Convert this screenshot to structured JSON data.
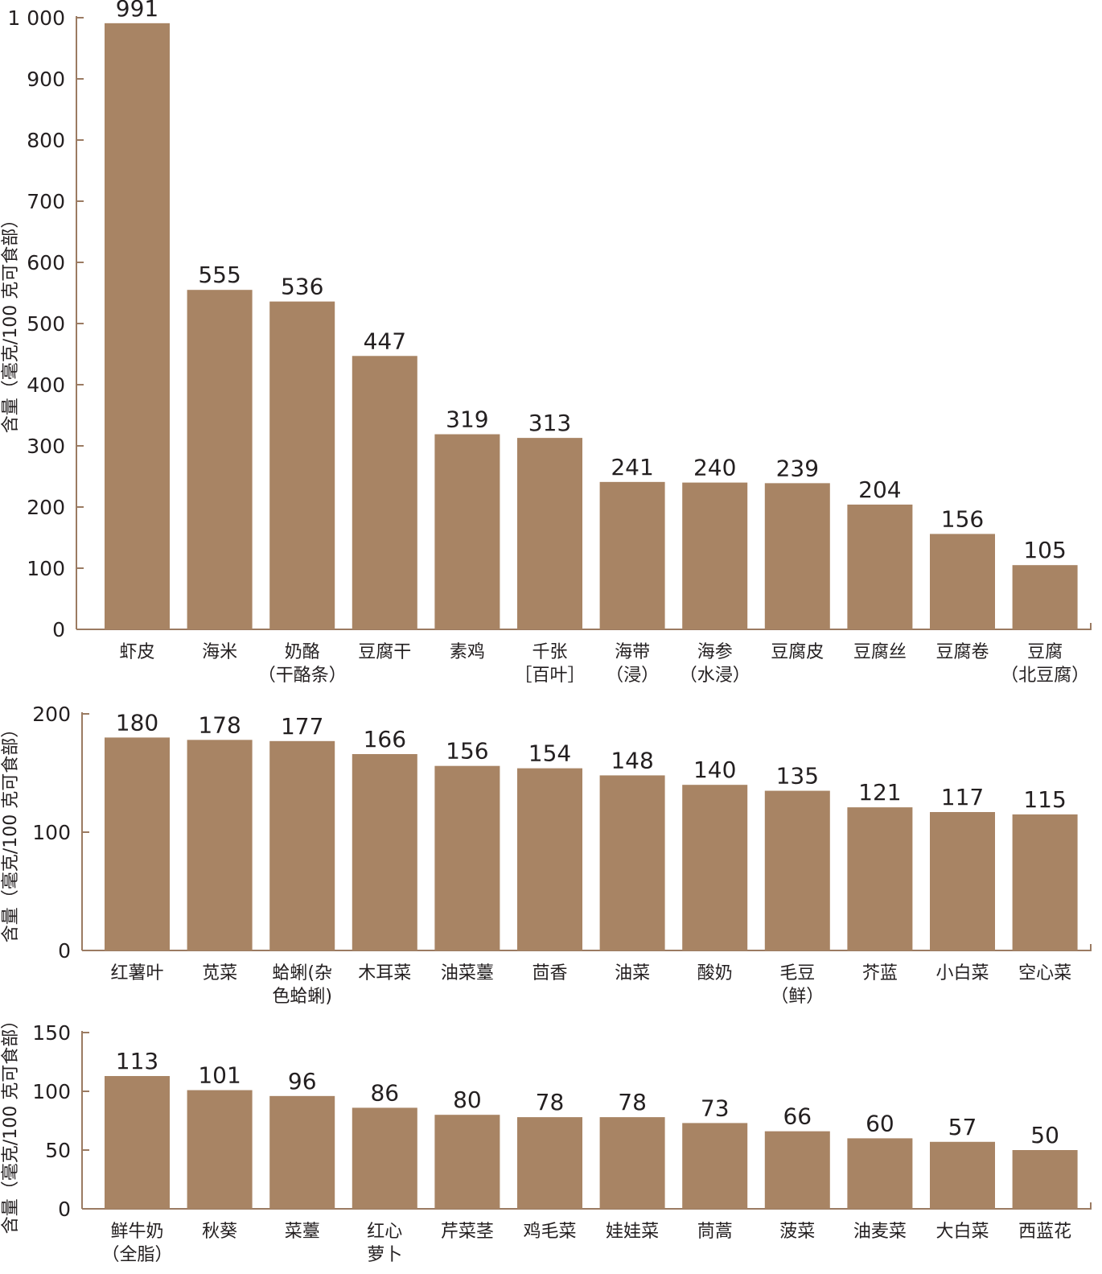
{
  "colors": {
    "bar": "#a88464",
    "axis": "#9b7b62",
    "text": "#231f20"
  },
  "chart_data": [
    {
      "type": "bar",
      "ylabel": "含量（毫克/100 克可食部）",
      "ylim": [
        0,
        1000
      ],
      "yticks": [
        0,
        100,
        200,
        300,
        400,
        500,
        600,
        700,
        800,
        900,
        1000
      ],
      "ytick_labels": [
        "0",
        "100",
        "200",
        "300",
        "400",
        "500",
        "600",
        "700",
        "800",
        "900",
        "1 000"
      ],
      "categories": [
        [
          "虾皮"
        ],
        [
          "海米"
        ],
        [
          "奶酪",
          "（干酪条）"
        ],
        [
          "豆腐干"
        ],
        [
          "素鸡"
        ],
        [
          "千张",
          "［百叶］"
        ],
        [
          "海带",
          "（浸）"
        ],
        [
          "海参",
          "（水浸）"
        ],
        [
          "豆腐皮"
        ],
        [
          "豆腐丝"
        ],
        [
          "豆腐卷"
        ],
        [
          "豆腐",
          "（北豆腐）"
        ]
      ],
      "values": [
        991,
        555,
        536,
        447,
        319,
        313,
        241,
        240,
        239,
        204,
        156,
        105
      ]
    },
    {
      "type": "bar",
      "ylabel": "含量（毫克/100 克可食部）",
      "ylim": [
        0,
        200
      ],
      "yticks": [
        0,
        100,
        200
      ],
      "ytick_labels": [
        "0",
        "100",
        "200"
      ],
      "categories": [
        [
          "红薯叶"
        ],
        [
          "苋菜"
        ],
        [
          "蛤蜊(杂",
          "色蛤蜊)"
        ],
        [
          "木耳菜"
        ],
        [
          "油菜薹"
        ],
        [
          "茴香"
        ],
        [
          "油菜"
        ],
        [
          "酸奶"
        ],
        [
          "毛豆",
          "（鲜）"
        ],
        [
          "芥蓝"
        ],
        [
          "小白菜"
        ],
        [
          "空心菜"
        ]
      ],
      "values": [
        180,
        178,
        177,
        166,
        156,
        154,
        148,
        140,
        135,
        121,
        117,
        115
      ]
    },
    {
      "type": "bar",
      "ylabel": "含量（毫克/100 克可食部）",
      "ylim": [
        0,
        150
      ],
      "yticks": [
        0,
        50,
        100,
        150
      ],
      "ytick_labels": [
        "0",
        "50",
        "100",
        "150"
      ],
      "categories": [
        [
          "鲜牛奶",
          "（全脂）"
        ],
        [
          "秋葵"
        ],
        [
          "菜薹"
        ],
        [
          "红心",
          "萝卜"
        ],
        [
          "芹菜茎"
        ],
        [
          "鸡毛菜"
        ],
        [
          "娃娃菜"
        ],
        [
          "茼蒿"
        ],
        [
          "菠菜"
        ],
        [
          "油麦菜"
        ],
        [
          "大白菜"
        ],
        [
          "西蓝花"
        ]
      ],
      "values": [
        113,
        101,
        96,
        86,
        80,
        78,
        78,
        73,
        66,
        60,
        57,
        50
      ]
    }
  ]
}
